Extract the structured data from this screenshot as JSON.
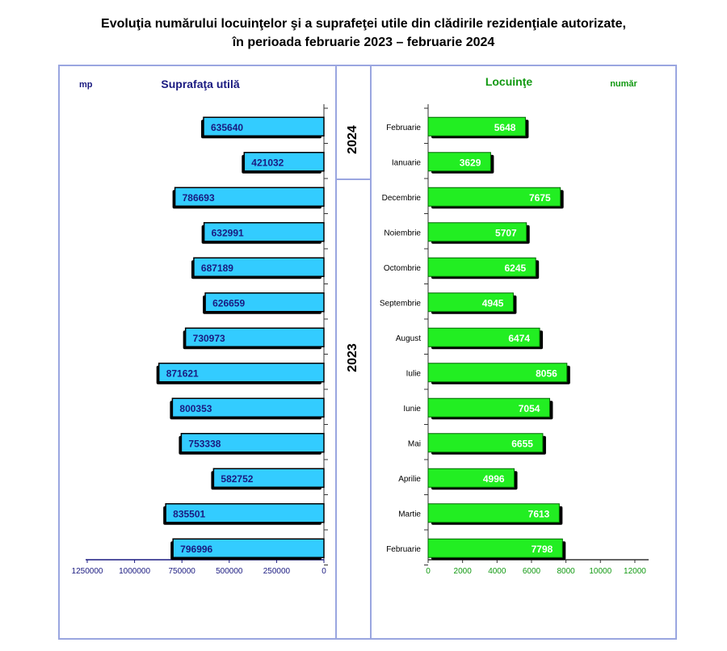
{
  "title": {
    "line1": "Evoluţia numărului locuinţelor şi a suprafeţei utile din clădirile rezidenţiale autorizate,",
    "line2": "în perioada februarie 2023 – februarie 2024"
  },
  "years": {
    "top": "2024",
    "bottom": "2023"
  },
  "colors": {
    "frame": "#9aa6e0",
    "area_fill": "#33ccff",
    "area_text": "#1a1a80",
    "area_axis_text": "#1a1a80",
    "dwell_fill": "#22ee22",
    "dwell_text": "#ffffff",
    "dwell_axis_text": "#119911",
    "shadow": "#000000"
  },
  "chart_data": [
    {
      "type": "bar",
      "orientation": "horizontal",
      "direction": "right-to-left",
      "title": "Suprafaţa utilă",
      "unit_label": "mp",
      "categories": [
        "Februarie 2024",
        "Ianuarie 2024",
        "Decembrie 2023",
        "Noiembrie 2023",
        "Octombrie 2023",
        "Septembrie 2023",
        "August 2023",
        "Iulie 2023",
        "Iunie 2023",
        "Mai 2023",
        "Aprilie 2023",
        "Martie 2023",
        "Februarie 2023"
      ],
      "values": [
        635640,
        421032,
        786693,
        632991,
        687189,
        626659,
        730973,
        871621,
        800353,
        753338,
        582752,
        835501,
        796996
      ],
      "value_labels": [
        "635640",
        "421032",
        "786693",
        "632991",
        "687189",
        "626659",
        "730973",
        "871621",
        "800353",
        "753338",
        "582752",
        "835501",
        "796996"
      ],
      "xlim": [
        0,
        1250000
      ],
      "ticks": [
        1250000,
        1000000,
        750000,
        500000,
        250000,
        0
      ],
      "tick_labels": [
        "1250000",
        "1000000",
        "750000",
        "500000",
        "250000",
        "0"
      ],
      "grid": false
    },
    {
      "type": "bar",
      "orientation": "horizontal",
      "title": "Locuinţe",
      "unit_label": "număr",
      "categories": [
        "Februarie",
        "Ianuarie",
        "Decembrie",
        "Noiembrie",
        "Octombrie",
        "Septembrie",
        "August",
        "Iulie",
        "Iunie",
        "Mai",
        "Aprilie",
        "Martie",
        "Februarie"
      ],
      "values": [
        5648,
        3629,
        7675,
        5707,
        6245,
        4945,
        6474,
        8056,
        7054,
        6655,
        4996,
        7613,
        7798
      ],
      "value_labels": [
        "5648",
        "3629",
        "7675",
        "5707",
        "6245",
        "4945",
        "6474",
        "8056",
        "7054",
        "6655",
        "4996",
        "7613",
        "7798"
      ],
      "xlim": [
        0,
        12800
      ],
      "ticks": [
        0,
        2000,
        4000,
        6000,
        8000,
        10000,
        12000
      ],
      "tick_labels": [
        "0",
        "2000",
        "4000",
        "6000",
        "8000",
        "10000",
        "12000"
      ],
      "grid": false
    }
  ]
}
